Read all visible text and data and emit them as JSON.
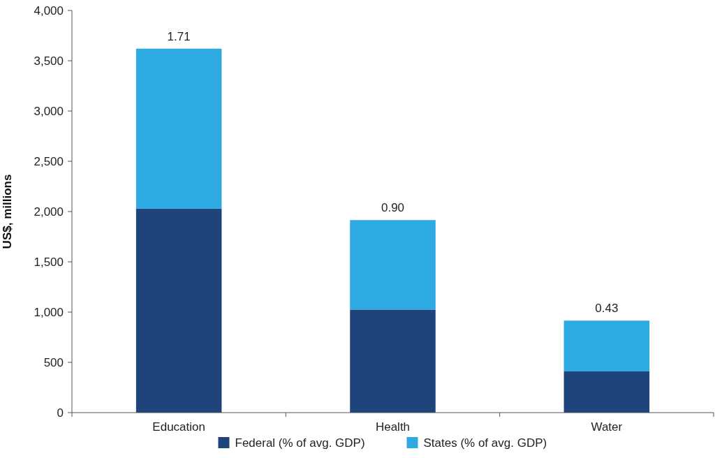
{
  "chart_data": {
    "type": "bar",
    "stacked": true,
    "ylabel": "US$, millions",
    "categories": [
      "Education",
      "Health",
      "Water"
    ],
    "series": [
      {
        "name": "Federal (% of avg. GDP)",
        "color": "#1f437b",
        "values": [
          2030,
          1025,
          410
        ]
      },
      {
        "name": "States (% of avg. GDP)",
        "color": "#2eaae2",
        "values": [
          1590,
          890,
          505
        ]
      }
    ],
    "annotations": [
      {
        "text": "1.71",
        "x": "Education",
        "y": 3620
      },
      {
        "text": "0.90",
        "x": "Health",
        "y": 1915
      },
      {
        "text": "0.43",
        "x": "Water",
        "y": 915
      }
    ],
    "ylim": [
      0,
      4000
    ],
    "yticks": [
      0,
      {
        "value": 500,
        "label": "500"
      },
      {
        "value": 1000,
        "label": "1,000"
      },
      {
        "value": 1500,
        "label": "1,500"
      },
      {
        "value": 2000,
        "label": "2,000"
      },
      {
        "value": 2500,
        "label": "2,500"
      },
      {
        "value": 3000,
        "label": "3,000"
      },
      {
        "value": 3500,
        "label": "3,500"
      },
      {
        "value": 4000,
        "label": "4,000"
      }
    ],
    "grid": false,
    "legend": "bottom"
  }
}
